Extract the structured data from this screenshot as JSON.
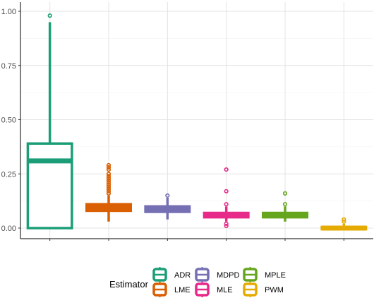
{
  "chart_data": {
    "type": "box",
    "title": "",
    "xlabel": "",
    "ylabel": "",
    "ylim": [
      -0.05,
      1.0
    ],
    "yticks": [
      {
        "value": 0.0,
        "label": "0.00"
      },
      {
        "value": 0.25,
        "label": "0.25"
      },
      {
        "value": 0.5,
        "label": "0.50"
      },
      {
        "value": 0.75,
        "label": "0.75"
      },
      {
        "value": 1.0,
        "label": "1.00"
      }
    ],
    "grid": true,
    "legend_position": "bottom",
    "legend_title": "Estimator",
    "series": [
      {
        "name": "ADR",
        "color": "#1b9e77",
        "q1": 0.0,
        "median": 0.31,
        "q3": 0.39,
        "whisker_low": 0.0,
        "whisker_high": 0.95,
        "outliers": [
          0.98
        ]
      },
      {
        "name": "LME",
        "color": "#d95f02",
        "q1": 0.08,
        "median": 0.095,
        "q3": 0.11,
        "whisker_low": 0.03,
        "whisker_high": 0.15,
        "outliers": [
          0.16,
          0.17,
          0.18,
          0.19,
          0.2,
          0.21,
          0.22,
          0.23,
          0.24,
          0.25,
          0.27,
          0.28,
          0.29
        ]
      },
      {
        "name": "MDPD",
        "color": "#7570b3",
        "q1": 0.075,
        "median": 0.09,
        "q3": 0.1,
        "whisker_low": 0.04,
        "whisker_high": 0.14,
        "outliers": [
          0.15
        ]
      },
      {
        "name": "MLE",
        "color": "#e7298a",
        "q1": 0.05,
        "median": 0.06,
        "q3": 0.07,
        "whisker_low": 0.03,
        "whisker_high": 0.1,
        "outliers": [
          0.02,
          0.01,
          0.11,
          0.17,
          0.27
        ]
      },
      {
        "name": "MPLE",
        "color": "#66a61e",
        "q1": 0.05,
        "median": 0.06,
        "q3": 0.07,
        "whisker_low": 0.03,
        "whisker_high": 0.1,
        "outliers": [
          0.11,
          0.16
        ]
      },
      {
        "name": "PWM",
        "color": "#e6ab02",
        "q1": -0.005,
        "median": 0.0,
        "q3": 0.005,
        "whisker_low": -0.01,
        "whisker_high": 0.02,
        "outliers": [
          0.03,
          0.04
        ]
      }
    ]
  }
}
